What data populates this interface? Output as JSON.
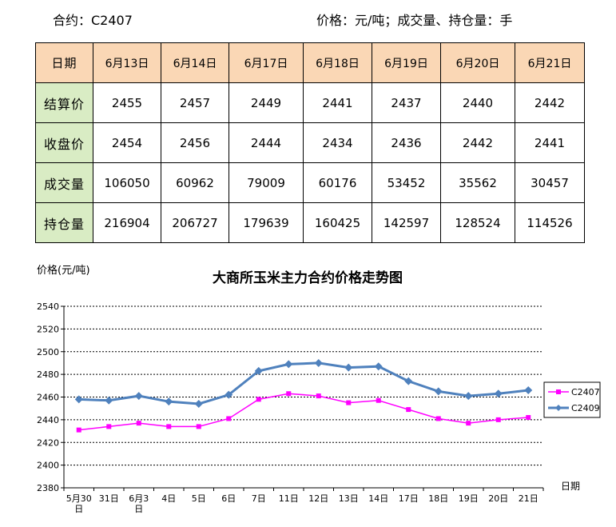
{
  "header": {
    "contract_label": "合约：C2407",
    "unit_label": "价格：元/吨；成交量、持仓量：手"
  },
  "table": {
    "corner": "日期",
    "dates": [
      "6月13日",
      "6月14日",
      "6月17日",
      "6月18日",
      "6月19日",
      "6月20日",
      "6月21日"
    ],
    "rows": [
      {
        "label": "结算价",
        "values": [
          "2455",
          "2457",
          "2449",
          "2441",
          "2437",
          "2440",
          "2442"
        ]
      },
      {
        "label": "收盘价",
        "values": [
          "2454",
          "2456",
          "2444",
          "2434",
          "2436",
          "2442",
          "2441"
        ]
      },
      {
        "label": "成交量",
        "values": [
          "106050",
          "60962",
          "79009",
          "60176",
          "53452",
          "35562",
          "30457"
        ]
      },
      {
        "label": "持仓量",
        "values": [
          "216904",
          "206727",
          "179639",
          "160425",
          "142597",
          "128524",
          "114526"
        ]
      }
    ]
  },
  "chart_data": {
    "type": "line",
    "title": "大商所玉米主力合约价格走势图",
    "ylabel": "价格(元/吨)",
    "xlabel": "日期",
    "ylim": [
      2380,
      2540
    ],
    "yticks": [
      2380,
      2400,
      2420,
      2440,
      2460,
      2480,
      2500,
      2520,
      2540
    ],
    "grid": true,
    "legend": "right",
    "x": [
      "5月30日",
      "31日",
      "6月3日",
      "4日",
      "5日",
      "6日",
      "7日",
      "11日",
      "12日",
      "13日",
      "14日",
      "17日",
      "18日",
      "19日",
      "20日",
      "21日"
    ],
    "series": [
      {
        "name": "C2407",
        "color": "#FF00FF",
        "marker": "square",
        "values": [
          2431,
          2434,
          2437,
          2434,
          2434,
          2441,
          2458,
          2463,
          2461,
          2455,
          2457,
          2449,
          2441,
          2437,
          2440,
          2442
        ]
      },
      {
        "name": "C2409",
        "color": "#4F81BD",
        "marker": "diamond",
        "values": [
          2458,
          2457,
          2461,
          2456,
          2454,
          2462,
          2483,
          2489,
          2490,
          2486,
          2487,
          2474,
          2465,
          2461,
          2463,
          2466
        ]
      }
    ]
  }
}
